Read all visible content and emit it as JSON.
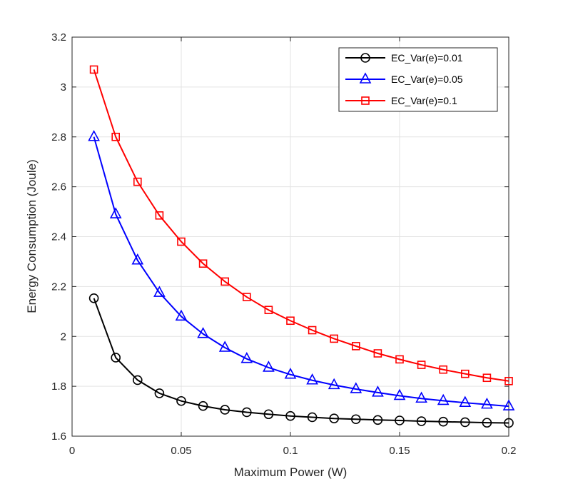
{
  "chart_data": {
    "type": "line",
    "title": "",
    "xlabel": "Maximum Power (W)",
    "ylabel": "Energy Consumption (Joule)",
    "xlim": [
      0,
      0.2
    ],
    "ylim": [
      1.6,
      3.2
    ],
    "grid": true,
    "legend_position": "top-right",
    "xticks": [
      0,
      0.05,
      0.1,
      0.15,
      0.2
    ],
    "xtick_labels": [
      "0",
      "0.05",
      "0.1",
      "0.15",
      "0.2"
    ],
    "yticks": [
      1.6,
      1.8,
      2.0,
      2.2,
      2.4,
      2.6,
      2.8,
      3.0,
      3.2
    ],
    "ytick_labels": [
      "1.6",
      "1.8",
      "2",
      "2.2",
      "2.4",
      "2.6",
      "2.8",
      "3",
      "3.2"
    ],
    "x": [
      0.01,
      0.02,
      0.03,
      0.04,
      0.05,
      0.06,
      0.07,
      0.08,
      0.09,
      0.1,
      0.11,
      0.12,
      0.13,
      0.14,
      0.15,
      0.16,
      0.17,
      0.18,
      0.19,
      0.2
    ],
    "series": [
      {
        "name": "EC_Var(e)=0.01",
        "color": "#000000",
        "marker": "circle",
        "values": [
          2.153,
          1.915,
          1.825,
          1.772,
          1.741,
          1.721,
          1.706,
          1.696,
          1.688,
          1.681,
          1.676,
          1.671,
          1.668,
          1.665,
          1.663,
          1.66,
          1.658,
          1.656,
          1.654,
          1.653
        ]
      },
      {
        "name": "EC_Var(e)=0.05",
        "color": "#0000ff",
        "marker": "triangle",
        "values": [
          2.8,
          2.49,
          2.305,
          2.175,
          2.08,
          2.01,
          1.955,
          1.91,
          1.875,
          1.847,
          1.824,
          1.805,
          1.789,
          1.775,
          1.762,
          1.751,
          1.742,
          1.734,
          1.727,
          1.72
        ]
      },
      {
        "name": "EC_Var(e)=0.1",
        "color": "#ff0000",
        "marker": "square",
        "values": [
          3.07,
          2.8,
          2.62,
          2.485,
          2.38,
          2.292,
          2.22,
          2.158,
          2.106,
          2.063,
          2.025,
          1.991,
          1.961,
          1.932,
          1.908,
          1.886,
          1.867,
          1.85,
          1.834,
          1.821
        ]
      }
    ]
  }
}
